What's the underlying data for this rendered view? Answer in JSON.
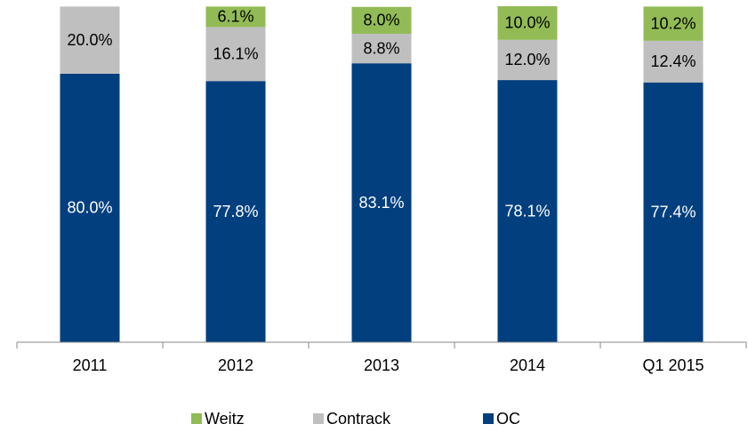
{
  "chart_data": {
    "type": "bar",
    "stacked": true,
    "categories": [
      "2011",
      "2012",
      "2013",
      "2014",
      "Q1 2015"
    ],
    "series": [
      {
        "name": "OC",
        "color": "#023f7e",
        "values": [
          80.0,
          77.8,
          83.1,
          78.1,
          77.4
        ],
        "value_labels": [
          "80.0%",
          "77.8%",
          "83.1%",
          "78.1%",
          "77.4%"
        ]
      },
      {
        "name": "Contrack",
        "color": "#bfbfbf",
        "values": [
          20.0,
          16.1,
          8.8,
          12.0,
          12.4
        ],
        "value_labels": [
          "20.0%",
          "16.1%",
          "8.8%",
          "12.0%",
          "12.4%"
        ]
      },
      {
        "name": "Weitz",
        "color": "#92bb55",
        "values": [
          null,
          6.1,
          8.0,
          10.0,
          10.2
        ],
        "value_labels": [
          null,
          "6.1%",
          "8.0%",
          "10.0%",
          "10.2%"
        ]
      }
    ],
    "legend": "bottom"
  }
}
